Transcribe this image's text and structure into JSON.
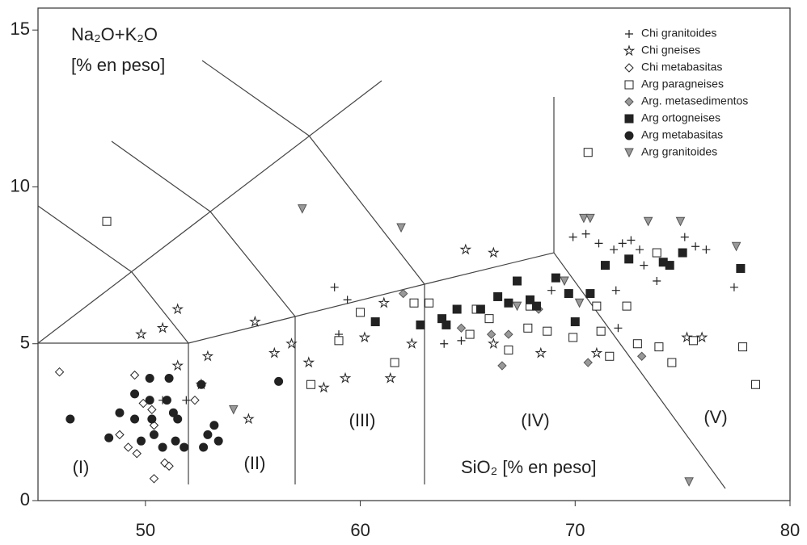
{
  "chart_data": {
    "type": "scatter",
    "ylabel": [
      "Na₂O+K₂O",
      "[% en peso]"
    ],
    "xlabel": "SiO₂ [% en peso]",
    "annotations": [
      "(I)",
      "(II)",
      "(III)",
      "(IV)",
      "(V)"
    ],
    "xlim": [
      45,
      80
    ],
    "ylim": [
      0,
      15.7
    ],
    "xticks": [
      50,
      60,
      70,
      80
    ],
    "yticks": [
      0,
      5,
      10,
      15
    ],
    "legend": "upper right",
    "series": [
      {
        "name": "Chi granitoides",
        "marker": "plus",
        "color": "#222",
        "x": [
          58.8,
          59.4,
          59.0,
          63.9,
          64.7,
          68.9,
          69.9,
          70.5,
          71.1,
          71.8,
          72.2,
          72.6,
          73.0,
          71.9,
          72.0,
          73.2,
          73.8,
          75.1,
          75.6,
          76.1,
          77.4,
          51.9,
          50.8
        ],
        "values": [
          6.8,
          6.4,
          5.3,
          5.0,
          5.1,
          6.7,
          8.4,
          8.5,
          8.2,
          8.0,
          8.2,
          8.3,
          8.0,
          6.7,
          5.5,
          7.5,
          7.0,
          8.4,
          8.1,
          8.0,
          6.8,
          3.2,
          3.2
        ]
      },
      {
        "name": "Chi gneises",
        "marker": "star",
        "color": "#222",
        "x": [
          49.8,
          50.8,
          51.5,
          52.9,
          55.1,
          54.8,
          56.0,
          56.8,
          57.6,
          58.3,
          59.3,
          60.2,
          61.1,
          61.4,
          62.4,
          64.9,
          66.2,
          66.2,
          68.4,
          71.0,
          75.2,
          75.9,
          52.6,
          51.5
        ],
        "values": [
          5.3,
          5.5,
          6.1,
          4.6,
          5.7,
          2.6,
          4.7,
          5.0,
          4.4,
          3.6,
          3.9,
          5.2,
          6.3,
          3.9,
          5.0,
          8.0,
          7.9,
          5.0,
          4.7,
          4.7,
          5.2,
          5.2,
          3.7,
          4.3
        ]
      },
      {
        "name": "Chi metabasitas",
        "marker": "diamond-open",
        "color": "#222",
        "x": [
          46.0,
          48.8,
          49.2,
          49.6,
          49.5,
          49.9,
          50.3,
          50.4,
          50.9,
          51.1,
          50.4,
          52.3
        ],
        "values": [
          4.1,
          2.1,
          1.7,
          1.5,
          4.0,
          3.1,
          2.9,
          2.4,
          1.2,
          1.1,
          0.7,
          3.2
        ]
      },
      {
        "name": "Arg paragneises",
        "marker": "square-open",
        "color": "#222",
        "x": [
          48.2,
          70.6,
          60.0,
          59.0,
          57.7,
          61.6,
          63.2,
          65.1,
          66.0,
          66.9,
          67.8,
          68.7,
          69.9,
          71.0,
          71.2,
          71.6,
          72.4,
          72.9,
          73.8,
          73.9,
          74.5,
          75.5,
          77.8,
          78.4,
          67.9,
          62.5,
          65.4
        ],
        "values": [
          8.9,
          11.1,
          6.0,
          5.1,
          3.7,
          4.4,
          6.3,
          5.3,
          5.8,
          4.8,
          5.5,
          5.4,
          5.2,
          6.2,
          5.4,
          4.6,
          6.2,
          5.0,
          7.9,
          4.9,
          4.4,
          5.1,
          4.9,
          3.7,
          6.2,
          6.3,
          6.1
        ]
      },
      {
        "name": "Arg. metasedimentos",
        "marker": "diamond",
        "color": "#999",
        "x": [
          62.0,
          64.7,
          66.1,
          66.6,
          66.9,
          70.6,
          73.1,
          68.3
        ],
        "values": [
          6.6,
          5.5,
          5.3,
          4.3,
          5.3,
          4.4,
          4.6,
          6.1
        ]
      },
      {
        "name": "Arg ortogneises",
        "marker": "square",
        "color": "#222",
        "x": [
          60.7,
          62.8,
          63.8,
          64.0,
          64.5,
          65.6,
          66.4,
          66.9,
          67.3,
          67.9,
          68.2,
          69.1,
          69.7,
          70.0,
          70.7,
          71.4,
          72.5,
          74.1,
          74.4,
          75.0,
          77.7
        ],
        "values": [
          5.7,
          5.6,
          5.8,
          5.6,
          6.1,
          6.1,
          6.5,
          6.3,
          7.0,
          6.4,
          6.2,
          7.1,
          6.6,
          5.7,
          6.6,
          7.5,
          7.7,
          7.6,
          7.5,
          7.9,
          7.4
        ]
      },
      {
        "name": "Arg metabasitas",
        "marker": "circle",
        "color": "#222",
        "x": [
          46.5,
          48.3,
          48.8,
          49.5,
          49.5,
          49.8,
          50.2,
          50.2,
          50.3,
          50.4,
          50.8,
          51.0,
          51.1,
          51.3,
          51.5,
          51.4,
          51.8,
          52.6,
          52.7,
          52.9,
          53.2,
          53.4,
          56.2
        ],
        "values": [
          2.6,
          2.0,
          2.8,
          3.4,
          2.6,
          1.9,
          3.9,
          3.2,
          2.6,
          2.1,
          1.7,
          3.2,
          3.9,
          2.8,
          2.6,
          1.9,
          1.7,
          3.7,
          1.7,
          2.1,
          2.4,
          1.9,
          3.8
        ]
      },
      {
        "name": "Arg granitoides",
        "marker": "triangle-down",
        "color": "#999",
        "x": [
          57.3,
          61.9,
          54.1,
          70.4,
          70.7,
          73.4,
          74.9,
          77.5,
          75.3,
          69.5,
          70.2,
          67.3
        ],
        "values": [
          9.3,
          8.7,
          2.9,
          9.0,
          9.0,
          8.9,
          8.9,
          8.1,
          0.6,
          7.0,
          6.3,
          6.2
        ]
      }
    ]
  }
}
